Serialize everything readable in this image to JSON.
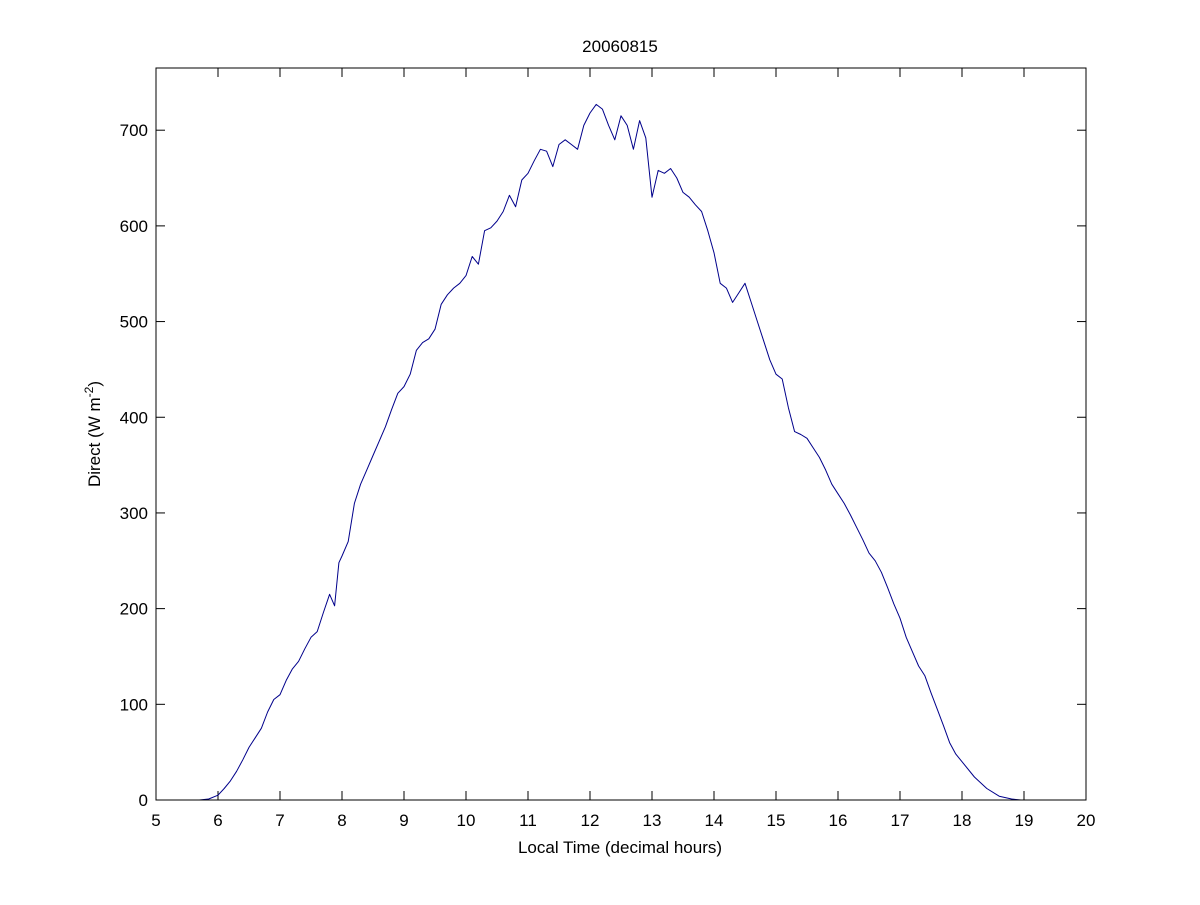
{
  "figure": {
    "background": "#ffffff"
  },
  "chart_data": {
    "type": "line",
    "title": "20060815",
    "xlabel": "Local Time (decimal hours)",
    "ylabel": {
      "prefix": "Direct (W m",
      "superscript": "-2",
      "suffix": ")"
    },
    "xlim": [
      5,
      20
    ],
    "ylim": [
      0,
      765
    ],
    "xticks": [
      5,
      6,
      7,
      8,
      9,
      10,
      11,
      12,
      13,
      14,
      15,
      16,
      17,
      18,
      19,
      20
    ],
    "yticks": [
      0,
      100,
      200,
      300,
      400,
      500,
      600,
      700
    ],
    "xtick_labels": [
      "5",
      "6",
      "7",
      "8",
      "9",
      "10",
      "11",
      "12",
      "13",
      "14",
      "15",
      "16",
      "17",
      "18",
      "19",
      "20"
    ],
    "ytick_labels": [
      "0",
      "100",
      "200",
      "300",
      "400",
      "500",
      "600",
      "700"
    ],
    "grid": false,
    "legend": "none",
    "series": [
      {
        "color": "#00008b",
        "x": [
          5.7,
          5.85,
          6.0,
          6.1,
          6.2,
          6.3,
          6.4,
          6.5,
          6.6,
          6.7,
          6.8,
          6.9,
          7.0,
          7.1,
          7.2,
          7.3,
          7.4,
          7.5,
          7.6,
          7.7,
          7.8,
          7.88,
          7.95,
          8.0,
          8.1,
          8.2,
          8.3,
          8.4,
          8.5,
          8.6,
          8.7,
          8.8,
          8.9,
          9.0,
          9.1,
          9.2,
          9.3,
          9.4,
          9.5,
          9.6,
          9.7,
          9.8,
          9.9,
          10.0,
          10.1,
          10.2,
          10.3,
          10.4,
          10.5,
          10.6,
          10.7,
          10.8,
          10.9,
          11.0,
          11.1,
          11.2,
          11.3,
          11.4,
          11.5,
          11.6,
          11.7,
          11.8,
          11.9,
          12.0,
          12.1,
          12.2,
          12.3,
          12.4,
          12.5,
          12.6,
          12.7,
          12.8,
          12.9,
          13.0,
          13.1,
          13.2,
          13.3,
          13.4,
          13.5,
          13.6,
          13.7,
          13.8,
          13.9,
          14.0,
          14.1,
          14.2,
          14.3,
          14.4,
          14.5,
          14.6,
          14.7,
          14.8,
          14.9,
          15.0,
          15.1,
          15.2,
          15.3,
          15.4,
          15.5,
          15.6,
          15.7,
          15.8,
          15.9,
          16.0,
          16.1,
          16.2,
          16.3,
          16.4,
          16.5,
          16.6,
          16.7,
          16.8,
          16.9,
          17.0,
          17.1,
          17.2,
          17.3,
          17.4,
          17.5,
          17.6,
          17.7,
          17.8,
          17.9,
          18.0,
          18.2,
          18.4,
          18.6,
          18.8,
          18.95
        ],
        "y": [
          0,
          1,
          5,
          12,
          20,
          30,
          42,
          55,
          65,
          75,
          92,
          105,
          110,
          125,
          137,
          145,
          158,
          170,
          176,
          196,
          215,
          203,
          248,
          255,
          270,
          310,
          330,
          345,
          360,
          375,
          390,
          408,
          425,
          432,
          445,
          470,
          478,
          482,
          492,
          518,
          528,
          535,
          540,
          548,
          568,
          560,
          595,
          598,
          605,
          615,
          632,
          620,
          648,
          655,
          668,
          680,
          678,
          662,
          685,
          690,
          685,
          680,
          705,
          718,
          727,
          722,
          705,
          690,
          715,
          705,
          680,
          710,
          692,
          630,
          658,
          655,
          660,
          650,
          635,
          630,
          622,
          615,
          595,
          572,
          540,
          535,
          520,
          530,
          540,
          520,
          500,
          480,
          460,
          445,
          440,
          410,
          385,
          382,
          378,
          368,
          358,
          345,
          330,
          320,
          310,
          298,
          285,
          272,
          258,
          250,
          238,
          222,
          205,
          190,
          170,
          155,
          140,
          130,
          112,
          95,
          78,
          60,
          48,
          40,
          24,
          12,
          4,
          1,
          0
        ]
      }
    ]
  }
}
